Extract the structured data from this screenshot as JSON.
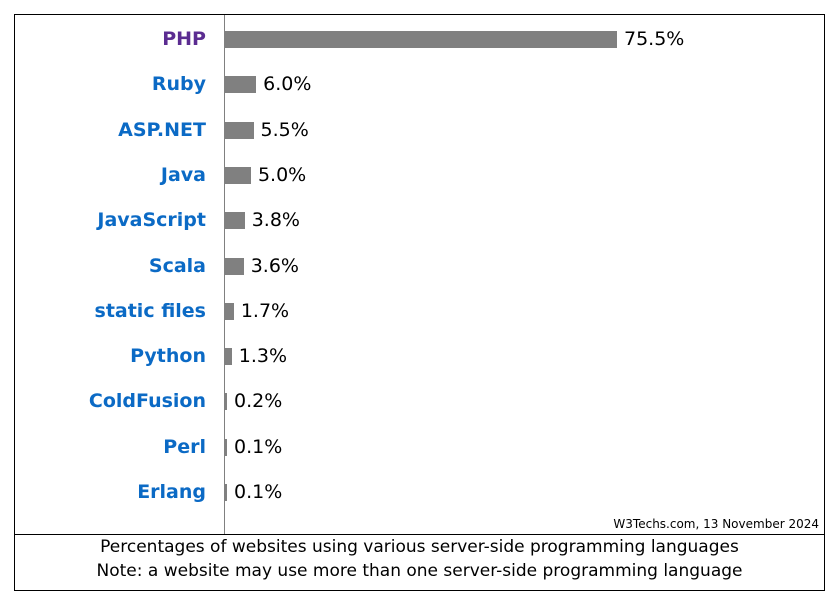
{
  "chart_data": {
    "type": "bar",
    "orientation": "horizontal",
    "categories": [
      "PHP",
      "Ruby",
      "ASP.NET",
      "Java",
      "JavaScript",
      "Scala",
      "static files",
      "Python",
      "ColdFusion",
      "Perl",
      "Erlang"
    ],
    "values": [
      75.5,
      6.0,
      5.5,
      5.0,
      3.8,
      3.6,
      1.7,
      1.3,
      0.2,
      0.1,
      0.1
    ],
    "value_labels": [
      "75.5%",
      "6.0%",
      "5.5%",
      "5.0%",
      "3.8%",
      "3.6%",
      "1.7%",
      "1.3%",
      "0.2%",
      "0.1%",
      "0.1%"
    ],
    "label_colors": [
      "#5b2c91",
      "#0b6ac5",
      "#0b6ac5",
      "#0b6ac5",
      "#0b6ac5",
      "#0b6ac5",
      "#0b6ac5",
      "#0b6ac5",
      "#0b6ac5",
      "#0b6ac5",
      "#0b6ac5"
    ],
    "bar_color": "#808080",
    "unit": "%",
    "grid": false,
    "credit": "W3Techs.com, 13 November 2024",
    "caption": [
      "Percentages of websites using various server-side programming languages",
      "Note: a website may use more than one server-side programming language"
    ]
  }
}
